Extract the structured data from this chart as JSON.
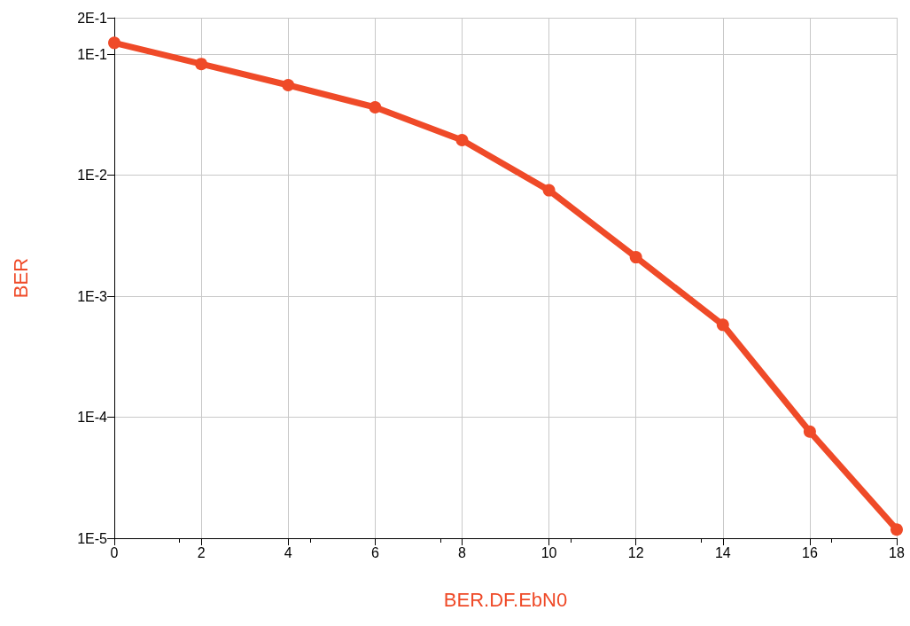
{
  "chart_data": {
    "type": "line",
    "xlabel": "BER.DF.EbN0",
    "ylabel": "BER",
    "x": [
      0,
      2,
      4,
      6,
      8,
      10,
      12,
      14,
      16,
      18
    ],
    "series": [
      {
        "color": "#ef4a28",
        "values": [
          0.124,
          0.083,
          0.0555,
          0.0364,
          0.0195,
          0.0075,
          0.0021,
          0.00058,
          7.6e-05,
          1.18e-05
        ]
      }
    ],
    "xlim": [
      0,
      18
    ],
    "xticks": [
      0,
      2,
      4,
      6,
      8,
      10,
      12,
      14,
      16,
      18
    ],
    "ylim": [
      1e-05,
      0.2
    ],
    "log": "y",
    "yticks": [
      {
        "value": 1e-05,
        "label": "1E-5"
      },
      {
        "value": 0.0001,
        "label": "1E-4"
      },
      {
        "value": 0.001,
        "label": "1E-3"
      },
      {
        "value": 0.01,
        "label": "1E-2"
      },
      {
        "value": 0.1,
        "label": "1E-1"
      },
      {
        "value": 0.2,
        "label": "2E-1"
      }
    ],
    "grid": true,
    "marker": "circle",
    "line_style": "solid"
  }
}
